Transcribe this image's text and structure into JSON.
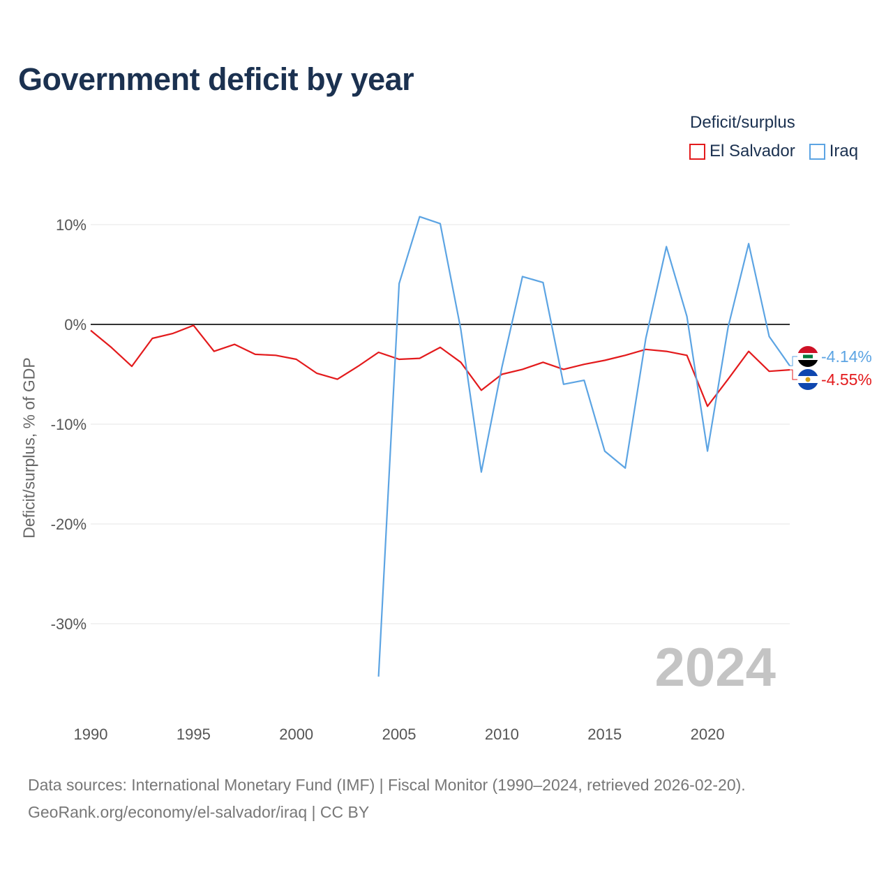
{
  "chart_data": {
    "type": "line",
    "title": "Government deficit by year",
    "ylabel": "Deficit/surplus, % of GDP",
    "xlabel": "",
    "legend_title": "Deficit/surplus",
    "legend_position": "top-right",
    "xlim": [
      1990,
      2024
    ],
    "ylim": [
      -37,
      13
    ],
    "yticks": [
      10,
      0,
      -10,
      -20,
      -30
    ],
    "ytick_labels": [
      "10%",
      "0%",
      "-10%",
      "-20%",
      "-30%"
    ],
    "xticks": [
      1990,
      1995,
      2000,
      2005,
      2010,
      2015,
      2020
    ],
    "xtick_labels": [
      "1990",
      "1995",
      "2000",
      "2005",
      "2010",
      "2015",
      "2020"
    ],
    "highlight_year": "2024",
    "series": [
      {
        "name": "El Salvador",
        "color": "#e31a1c",
        "flag_icon": "el-salvador-flag-icon",
        "end_label": "-4.55%",
        "x": [
          1990,
          1991,
          1992,
          1993,
          1994,
          1995,
          1996,
          1997,
          1998,
          1999,
          2000,
          2001,
          2002,
          2003,
          2004,
          2005,
          2006,
          2007,
          2008,
          2009,
          2010,
          2011,
          2012,
          2013,
          2014,
          2015,
          2016,
          2017,
          2018,
          2019,
          2020,
          2021,
          2022,
          2023,
          2024
        ],
        "values": [
          -0.6,
          -2.3,
          -4.2,
          -1.4,
          -0.9,
          -0.1,
          -2.7,
          -2.0,
          -3.0,
          -3.1,
          -3.5,
          -4.9,
          -5.5,
          -4.2,
          -2.8,
          -3.5,
          -3.4,
          -2.3,
          -3.8,
          -6.6,
          -5.0,
          -4.5,
          -3.8,
          -4.5,
          -4.0,
          -3.6,
          -3.1,
          -2.5,
          -2.7,
          -3.1,
          -8.2,
          -5.5,
          -2.7,
          -4.7,
          -4.55
        ]
      },
      {
        "name": "Iraq",
        "color": "#5ca4e3",
        "flag_icon": "iraq-flag-icon",
        "end_label": "-4.14%",
        "x": [
          2004,
          2005,
          2006,
          2007,
          2008,
          2009,
          2010,
          2011,
          2012,
          2013,
          2014,
          2015,
          2016,
          2017,
          2018,
          2019,
          2020,
          2021,
          2022,
          2023,
          2024
        ],
        "values": [
          -35.3,
          4.1,
          10.8,
          10.1,
          -0.5,
          -14.8,
          -4.3,
          4.8,
          4.2,
          -6.0,
          -5.6,
          -12.7,
          -14.4,
          -1.4,
          7.8,
          0.8,
          -12.7,
          -0.3,
          8.1,
          -1.2,
          -4.14
        ]
      }
    ]
  },
  "footer": {
    "line1": "Data sources: International Monetary Fund (IMF) | Fiscal Monitor (1990–2024, retrieved 2026-02-20).",
    "line2": "GeoRank.org/economy/el-salvador/iraq | CC BY"
  }
}
